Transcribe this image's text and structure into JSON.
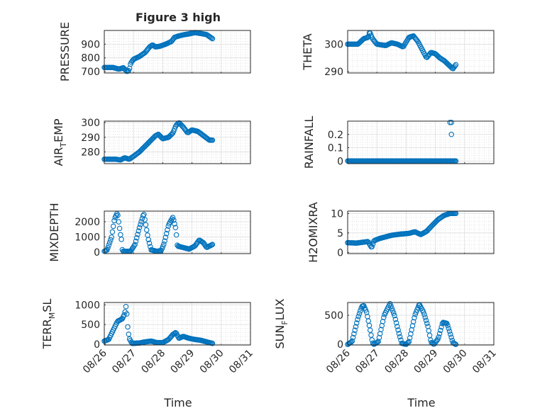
{
  "figure": {
    "title": "Figure 3 high",
    "x_tick_labels": [
      "08/26",
      "08/27",
      "08/28",
      "08/29",
      "08/30",
      "08/31"
    ],
    "xlabel": "Time",
    "marker_color": "#0072BD"
  },
  "chart_data": [
    {
      "type": "scatter",
      "marker": "circle",
      "ylabel": "PRESSURE",
      "title": "Figure 3 high",
      "ylim": [
        690,
        1000
      ],
      "yticks": [
        700,
        800,
        900
      ],
      "ytick_labels": [
        "700",
        "800",
        "900"
      ],
      "xlim": [
        0,
        5
      ],
      "x_tick_labels": [
        "08/26",
        "08/27",
        "08/28",
        "08/29",
        "08/30",
        "08/31"
      ],
      "keyframes": [
        [
          0.0,
          730
        ],
        [
          0.3,
          730
        ],
        [
          0.5,
          718
        ],
        [
          0.65,
          728
        ],
        [
          0.78,
          700
        ],
        [
          0.85,
          710
        ],
        [
          0.9,
          760
        ],
        [
          1.0,
          790
        ],
        [
          1.2,
          810
        ],
        [
          1.4,
          840
        ],
        [
          1.55,
          880
        ],
        [
          1.65,
          895
        ],
        [
          1.75,
          880
        ],
        [
          1.9,
          885
        ],
        [
          2.1,
          900
        ],
        [
          2.3,
          920
        ],
        [
          2.4,
          950
        ],
        [
          2.55,
          960
        ],
        [
          2.7,
          968
        ],
        [
          2.9,
          975
        ],
        [
          3.1,
          985
        ],
        [
          3.3,
          978
        ],
        [
          3.5,
          970
        ],
        [
          3.6,
          955
        ],
        [
          3.7,
          940
        ]
      ]
    },
    {
      "type": "scatter",
      "marker": "circle",
      "ylabel": "THETA",
      "ylim": [
        289.5,
        305
      ],
      "yticks": [
        290,
        300
      ],
      "ytick_labels": [
        "290",
        "300"
      ],
      "xlim": [
        0,
        5
      ],
      "x_tick_labels": [
        "08/26",
        "08/27",
        "08/28",
        "08/29",
        "08/30",
        "08/31"
      ],
      "keyframes": [
        [
          0.0,
          300
        ],
        [
          0.35,
          300
        ],
        [
          0.55,
          302
        ],
        [
          0.7,
          302.5
        ],
        [
          0.75,
          304.5
        ],
        [
          0.85,
          302
        ],
        [
          1.0,
          300
        ],
        [
          1.3,
          299.5
        ],
        [
          1.5,
          300.5
        ],
        [
          1.7,
          300
        ],
        [
          1.9,
          299
        ],
        [
          2.1,
          302.5
        ],
        [
          2.25,
          303
        ],
        [
          2.4,
          301
        ],
        [
          2.55,
          298
        ],
        [
          2.7,
          295
        ],
        [
          2.85,
          297
        ],
        [
          3.0,
          296.5
        ],
        [
          3.15,
          295
        ],
        [
          3.3,
          294
        ],
        [
          3.45,
          292.5
        ],
        [
          3.6,
          291
        ],
        [
          3.7,
          292.5
        ]
      ]
    },
    {
      "type": "scatter",
      "marker": "circle",
      "ylabel": "AIR_TEMP",
      "ylabel_main": "AIR",
      "ylabel_sub": "T",
      "ylabel_rest": "EMP",
      "ylim": [
        272,
        301
      ],
      "yticks": [
        280,
        290,
        300
      ],
      "ytick_labels": [
        "280",
        "290",
        "300"
      ],
      "xlim": [
        0,
        5
      ],
      "x_tick_labels": [
        "08/26",
        "08/27",
        "08/28",
        "08/29",
        "08/30",
        "08/31"
      ],
      "keyframes": [
        [
          0.0,
          275
        ],
        [
          0.4,
          275
        ],
        [
          0.55,
          274.5
        ],
        [
          0.7,
          276
        ],
        [
          0.85,
          275
        ],
        [
          1.0,
          277
        ],
        [
          1.2,
          280
        ],
        [
          1.4,
          284
        ],
        [
          1.6,
          288
        ],
        [
          1.75,
          291
        ],
        [
          1.85,
          292
        ],
        [
          2.0,
          289
        ],
        [
          2.2,
          290
        ],
        [
          2.35,
          293
        ],
        [
          2.45,
          298
        ],
        [
          2.55,
          300
        ],
        [
          2.7,
          297
        ],
        [
          2.85,
          293
        ],
        [
          3.0,
          295
        ],
        [
          3.2,
          294
        ],
        [
          3.4,
          291
        ],
        [
          3.6,
          288
        ],
        [
          3.7,
          288
        ]
      ]
    },
    {
      "type": "scatter",
      "marker": "circle",
      "ylabel": "RAINFALL",
      "ylim": [
        -0.02,
        0.3
      ],
      "yticks": [
        0,
        0.1,
        0.2
      ],
      "ytick_labels": [
        "0",
        "0.1",
        "0.2"
      ],
      "xlim": [
        0,
        5
      ],
      "x_tick_labels": [
        "08/26",
        "08/27",
        "08/28",
        "08/29",
        "08/30",
        "08/31"
      ],
      "keyframes": [
        [
          0.0,
          0
        ],
        [
          3.7,
          0
        ]
      ],
      "extra_points": [
        [
          3.5,
          0.29
        ],
        [
          3.55,
          0.29
        ],
        [
          3.55,
          0.2
        ]
      ]
    },
    {
      "type": "scatter",
      "marker": "circle",
      "ylabel": "MIXDEPTH",
      "ylim": [
        -100,
        2700
      ],
      "yticks": [
        0,
        1000,
        2000
      ],
      "ytick_labels": [
        "0",
        "1000",
        "2000"
      ],
      "xlim": [
        0,
        5
      ],
      "x_tick_labels": [
        "08/26",
        "08/27",
        "08/28",
        "08/29",
        "08/30",
        "08/31"
      ],
      "keyframes": [
        [
          0.0,
          50
        ],
        [
          0.1,
          150
        ],
        [
          0.25,
          1000
        ],
        [
          0.35,
          2200
        ],
        [
          0.45,
          2600
        ],
        [
          0.55,
          1200
        ],
        [
          0.6,
          700
        ],
        [
          0.62,
          50
        ],
        [
          0.9,
          50
        ],
        [
          1.05,
          500
        ],
        [
          1.2,
          1600
        ],
        [
          1.35,
          2550
        ],
        [
          1.5,
          900
        ],
        [
          1.6,
          150
        ],
        [
          1.8,
          50
        ],
        [
          1.95,
          100
        ],
        [
          2.05,
          600
        ],
        [
          2.2,
          1800
        ],
        [
          2.35,
          2300
        ],
        [
          2.45,
          1500
        ],
        [
          2.5,
          400
        ],
        [
          2.7,
          300
        ],
        [
          2.9,
          200
        ],
        [
          3.1,
          400
        ],
        [
          3.25,
          800
        ],
        [
          3.4,
          600
        ],
        [
          3.5,
          300
        ],
        [
          3.65,
          450
        ],
        [
          3.7,
          500
        ]
      ]
    },
    {
      "type": "scatter",
      "marker": "circle",
      "ylabel": "H2OMIXRA",
      "ylim": [
        -0.3,
        10.6
      ],
      "yticks": [
        0,
        5,
        10
      ],
      "ytick_labels": [
        "0",
        "5",
        "10"
      ],
      "xlim": [
        0,
        5
      ],
      "x_tick_labels": [
        "08/26",
        "08/27",
        "08/28",
        "08/29",
        "08/30",
        "08/31"
      ],
      "keyframes": [
        [
          0.0,
          2.5
        ],
        [
          0.3,
          2.4
        ],
        [
          0.5,
          2.6
        ],
        [
          0.7,
          2.8
        ],
        [
          0.82,
          1.2
        ],
        [
          0.9,
          3.0
        ],
        [
          1.1,
          3.6
        ],
        [
          1.3,
          4.0
        ],
        [
          1.5,
          4.4
        ],
        [
          1.8,
          4.7
        ],
        [
          2.1,
          4.9
        ],
        [
          2.3,
          5.3
        ],
        [
          2.5,
          4.6
        ],
        [
          2.7,
          5.4
        ],
        [
          2.9,
          7.0
        ],
        [
          3.1,
          8.5
        ],
        [
          3.3,
          9.5
        ],
        [
          3.5,
          10
        ],
        [
          3.7,
          10
        ]
      ]
    },
    {
      "type": "scatter",
      "marker": "circle",
      "ylabel": "TERR_MSL",
      "ylabel_main": "TERR",
      "ylabel_sub": "M",
      "ylabel_rest": "SL",
      "ylim": [
        -20,
        1060
      ],
      "yticks": [
        0,
        500,
        1000
      ],
      "ytick_labels": [
        "0",
        "500",
        "1000"
      ],
      "xlim": [
        0,
        5
      ],
      "x_tick_labels": [
        "08/26",
        "08/27",
        "08/28",
        "08/29",
        "08/30",
        "08/31"
      ],
      "keyframes": [
        [
          0.0,
          80
        ],
        [
          0.15,
          120
        ],
        [
          0.3,
          350
        ],
        [
          0.45,
          580
        ],
        [
          0.55,
          620
        ],
        [
          0.62,
          650
        ],
        [
          0.7,
          780
        ],
        [
          0.75,
          1000
        ],
        [
          0.8,
          450
        ],
        [
          0.85,
          150
        ],
        [
          0.95,
          20
        ],
        [
          1.2,
          30
        ],
        [
          1.4,
          60
        ],
        [
          1.6,
          80
        ],
        [
          1.8,
          40
        ],
        [
          2.0,
          40
        ],
        [
          2.2,
          120
        ],
        [
          2.35,
          250
        ],
        [
          2.45,
          300
        ],
        [
          2.55,
          150
        ],
        [
          2.7,
          200
        ],
        [
          2.9,
          150
        ],
        [
          3.1,
          120
        ],
        [
          3.3,
          100
        ],
        [
          3.5,
          60
        ],
        [
          3.65,
          30
        ],
        [
          3.7,
          20
        ]
      ]
    },
    {
      "type": "scatter",
      "marker": "circle",
      "ylabel": "SUN_FLUX",
      "ylabel_main": "SUN",
      "ylabel_sub": "F",
      "ylabel_rest": "LUX",
      "ylim": [
        -10,
        720
      ],
      "yticks": [
        0,
        500
      ],
      "ytick_labels": [
        "0",
        "500"
      ],
      "xlim": [
        0,
        5
      ],
      "x_tick_labels": [
        "08/26",
        "08/27",
        "08/28",
        "08/29",
        "08/30",
        "08/31"
      ],
      "keyframes": [
        [
          0.0,
          0
        ],
        [
          0.15,
          50
        ],
        [
          0.35,
          450
        ],
        [
          0.48,
          650
        ],
        [
          0.55,
          670
        ],
        [
          0.65,
          550
        ],
        [
          0.75,
          300
        ],
        [
          0.85,
          30
        ],
        [
          0.9,
          0
        ],
        [
          1.05,
          50
        ],
        [
          1.25,
          500
        ],
        [
          1.45,
          700
        ],
        [
          1.6,
          500
        ],
        [
          1.75,
          200
        ],
        [
          1.85,
          20
        ],
        [
          2.0,
          0
        ],
        [
          2.1,
          50
        ],
        [
          2.3,
          500
        ],
        [
          2.45,
          690
        ],
        [
          2.6,
          550
        ],
        [
          2.75,
          300
        ],
        [
          2.85,
          40
        ],
        [
          2.95,
          0
        ],
        [
          3.1,
          100
        ],
        [
          3.25,
          380
        ],
        [
          3.4,
          360
        ],
        [
          3.5,
          200
        ],
        [
          3.6,
          30
        ],
        [
          3.7,
          0
        ]
      ]
    }
  ]
}
